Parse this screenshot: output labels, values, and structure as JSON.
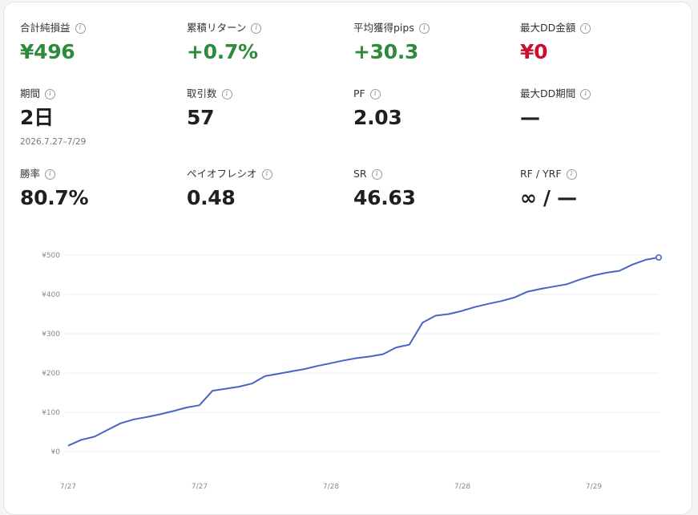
{
  "stats": [
    {
      "label": "合計純損益",
      "value": "¥496",
      "tone": "pos"
    },
    {
      "label": "累積リターン",
      "value": "+0.7%",
      "tone": "pos"
    },
    {
      "label": "平均獲得pips",
      "value": "+30.3",
      "tone": "pos"
    },
    {
      "label": "最大DD金額",
      "value": "¥0",
      "tone": "neg"
    },
    {
      "label": "期間",
      "value": "2日",
      "sub": "2026.7.27–7/29"
    },
    {
      "label": "取引数",
      "value": "57"
    },
    {
      "label": "PF",
      "value": "2.03"
    },
    {
      "label": "最大DD期間",
      "value": "—"
    },
    {
      "label": "勝率",
      "value": "80.7%"
    },
    {
      "label": "ペイオフレシオ",
      "value": "0.48"
    },
    {
      "label": "SR",
      "value": "46.63"
    },
    {
      "label": "RF / YRF",
      "value": "∞ / —"
    }
  ],
  "chart_data": {
    "type": "line",
    "title": "",
    "xlabel": "",
    "ylabel": "",
    "ylim": [
      0,
      500
    ],
    "y_ticks": [
      "¥0",
      "¥100",
      "¥200",
      "¥300",
      "¥400",
      "¥500"
    ],
    "x_ticks": [
      "7/27",
      "7/27",
      "7/28",
      "7/28",
      "7/29"
    ],
    "grid": true,
    "line_color": "#4a64c4",
    "series": [
      {
        "values": [
          15,
          30,
          38,
          55,
          72,
          82,
          88,
          95,
          103,
          112,
          118,
          155,
          160,
          165,
          173,
          192,
          198,
          204,
          210,
          218,
          225,
          232,
          238,
          242,
          248,
          265,
          272,
          328,
          346,
          350,
          358,
          368,
          376,
          383,
          392,
          407,
          414,
          420,
          426,
          438,
          448,
          455,
          460,
          476,
          488,
          494
        ]
      }
    ]
  }
}
